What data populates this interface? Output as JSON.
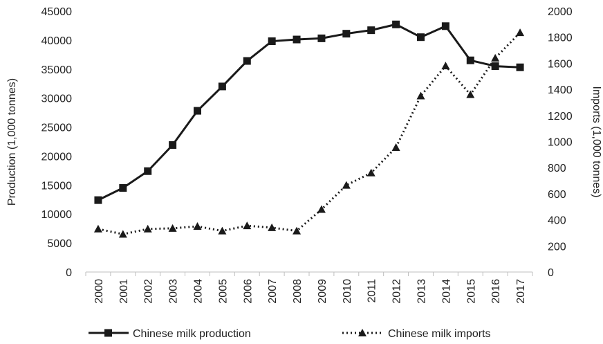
{
  "chart_data": {
    "type": "line",
    "x": [
      "2000",
      "2001",
      "2002",
      "2003",
      "2004",
      "2005",
      "2006",
      "2007",
      "2008",
      "2009",
      "2010",
      "2011",
      "2012",
      "2013",
      "2014",
      "2015",
      "2016",
      "2017"
    ],
    "series": [
      {
        "name": "Chinese milk production",
        "axis": "left",
        "line_style": "solid",
        "marker": "square",
        "values": [
          12400,
          14500,
          17400,
          21900,
          27800,
          32000,
          36400,
          39800,
          40100,
          40300,
          41100,
          41700,
          42700,
          40500,
          42400,
          36500,
          35500,
          35300
        ]
      },
      {
        "name": "Chinese milk imports",
        "axis": "right",
        "line_style": "dotted",
        "marker": "triangle",
        "values": [
          330,
          290,
          330,
          335,
          350,
          315,
          355,
          340,
          315,
          480,
          665,
          760,
          955,
          1350,
          1580,
          1360,
          1640,
          1835
        ]
      }
    ],
    "ylabel_left": "Production (1,000 tonnes)",
    "ylabel_right": "Imports (1,000 tonnes)",
    "ylim_left": [
      0,
      45000
    ],
    "ylim_right": [
      0,
      2000
    ],
    "yticks_left": [
      "0",
      "5000",
      "10000",
      "15000",
      "20000",
      "25000",
      "30000",
      "35000",
      "40000",
      "45000"
    ],
    "yticks_right": [
      "0",
      "200",
      "400",
      "600",
      "800",
      "1000",
      "1200",
      "1400",
      "1600",
      "1800",
      "2000"
    ],
    "grid": false,
    "legend_position": "bottom",
    "colors": {
      "line": "#1a1a1a",
      "text": "#222222"
    }
  }
}
